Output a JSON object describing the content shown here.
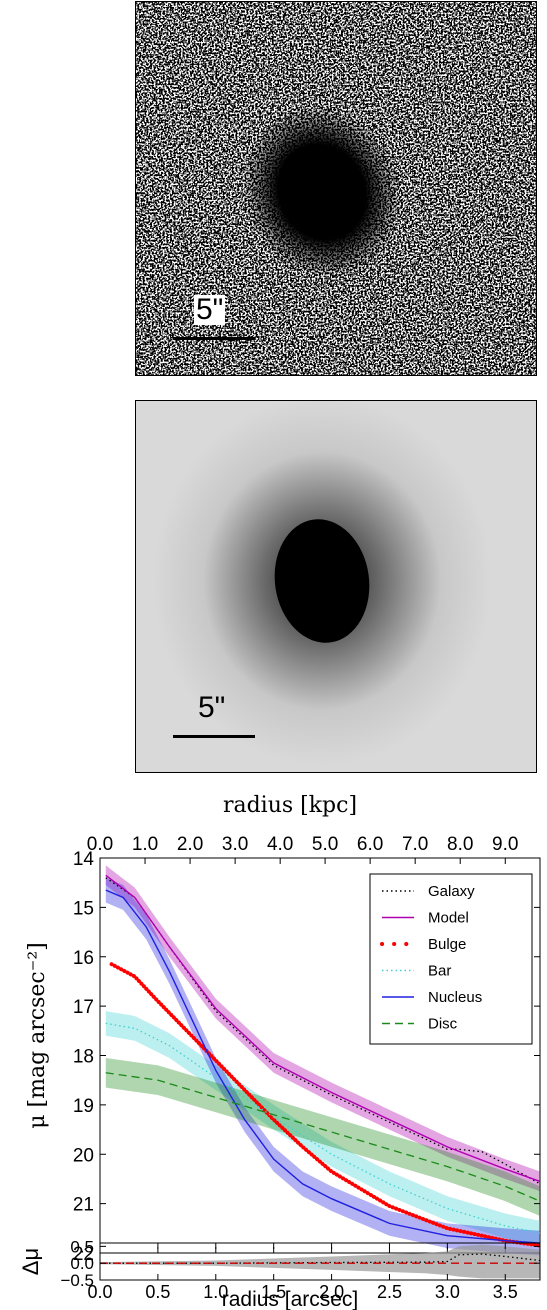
{
  "images": {
    "data_panel": {
      "scale_label": "5\""
    },
    "model_panel": {
      "scale_label": "5\""
    }
  },
  "chart_data": [
    {
      "type": "line",
      "name": "surface-brightness-profile",
      "xlabel": "",
      "x2label": "radius [kpc]",
      "ylabel": "μ [mag arcsec⁻²]",
      "xlim": [
        0.0,
        3.8
      ],
      "ylim": [
        22,
        14
      ],
      "y_inverted": true,
      "x2_ticks": [
        "0.0",
        "1.0",
        "2.0",
        "3.0",
        "4.0",
        "5.0",
        "6.0",
        "7.0",
        "8.0",
        "9.0"
      ],
      "x2_tick_positions_arcsec": [
        0.0,
        0.389,
        0.778,
        1.167,
        1.556,
        1.944,
        2.333,
        2.722,
        3.111,
        3.5
      ],
      "y_ticks": [
        14,
        15,
        16,
        17,
        18,
        19,
        20,
        21,
        22
      ],
      "legend_position": "top-right",
      "series": [
        {
          "name": "Galaxy",
          "style": "dotted",
          "color": "#000000",
          "x": [
            0.05,
            0.3,
            0.6,
            1.0,
            1.5,
            2.0,
            2.5,
            3.0,
            3.1,
            3.3,
            3.5,
            3.8
          ],
          "y": [
            14.4,
            14.8,
            15.8,
            17.1,
            18.2,
            18.8,
            19.35,
            19.9,
            19.9,
            19.95,
            20.2,
            20.6
          ]
        },
        {
          "name": "Model",
          "style": "solid",
          "color": "#b000b0",
          "x": [
            0.05,
            0.3,
            0.6,
            1.0,
            1.5,
            2.0,
            2.5,
            3.0,
            3.5,
            3.8
          ],
          "y": [
            14.35,
            14.8,
            15.8,
            17.05,
            18.15,
            18.75,
            19.3,
            19.85,
            20.3,
            20.55
          ],
          "band": 0.2
        },
        {
          "name": "Bulge",
          "style": "dots",
          "color": "#ff0000",
          "x": [
            0.1,
            0.3,
            0.5,
            0.75,
            1.0,
            1.25,
            1.5,
            1.75,
            2.0,
            2.5,
            3.0,
            3.5,
            3.8
          ],
          "y": [
            16.15,
            16.4,
            16.9,
            17.5,
            18.1,
            18.7,
            19.3,
            19.85,
            20.35,
            21.05,
            21.5,
            21.75,
            21.85
          ]
        },
        {
          "name": "Bar",
          "style": "dotted",
          "color": "#40d0d0",
          "x": [
            0.05,
            0.3,
            0.6,
            1.0,
            1.5,
            2.0,
            2.5,
            3.0,
            3.5,
            3.8
          ],
          "y": [
            17.35,
            17.45,
            17.8,
            18.45,
            19.25,
            20.0,
            20.6,
            21.1,
            21.45,
            21.6
          ],
          "band": 0.25
        },
        {
          "name": "Nucleus",
          "style": "solid",
          "color": "#2020e0",
          "x": [
            0.05,
            0.2,
            0.4,
            0.6,
            0.8,
            1.0,
            1.25,
            1.5,
            1.75,
            2.0,
            2.5,
            3.0,
            3.5,
            3.8
          ],
          "y": [
            14.65,
            14.8,
            15.4,
            16.3,
            17.3,
            18.3,
            19.3,
            20.1,
            20.6,
            20.9,
            21.4,
            21.65,
            21.75,
            21.8
          ],
          "band": 0.25
        },
        {
          "name": "Disc",
          "style": "dashed",
          "color": "#1a8a1a",
          "x": [
            0.05,
            0.5,
            1.0,
            1.5,
            2.0,
            2.5,
            3.0,
            3.5,
            3.8
          ],
          "y": [
            18.35,
            18.5,
            18.85,
            19.2,
            19.55,
            19.9,
            20.25,
            20.65,
            20.95
          ],
          "band": 0.3
        }
      ]
    },
    {
      "type": "line",
      "name": "residuals",
      "xlabel": "radius [arcsec]",
      "ylabel": "Δμ",
      "xlim": [
        0.0,
        3.8
      ],
      "ylim": [
        -0.5,
        0.6
      ],
      "x_ticks": [
        "0.0",
        "0.5",
        "1.0",
        "1.5",
        "2.0",
        "2.5",
        "3.0",
        "3.5"
      ],
      "y_ticks": [
        "−0.5",
        "0.0",
        "0.5"
      ],
      "y_tick_values": [
        -0.5,
        0.0,
        0.5
      ],
      "series": [
        {
          "name": "",
          "style": "dotted",
          "color": "#000000",
          "x": [
            0.0,
            1.0,
            2.0,
            2.8,
            3.0,
            3.1,
            3.3,
            3.5,
            3.8
          ],
          "y": [
            0.0,
            0.0,
            0.02,
            0.03,
            0.05,
            0.25,
            0.27,
            0.2,
            0.08
          ],
          "band_upper": [
            0.03,
            0.08,
            0.2,
            0.3,
            0.35,
            0.5,
            0.55,
            0.5,
            0.4
          ],
          "band_lower": [
            -0.03,
            -0.08,
            -0.2,
            -0.3,
            -0.35,
            -0.4,
            -0.45,
            -0.45,
            -0.45
          ]
        },
        {
          "name": "",
          "style": "dashed",
          "color": "#cc0000",
          "x": [
            0.0,
            3.8
          ],
          "y": [
            0.0,
            0.0
          ]
        }
      ]
    }
  ]
}
